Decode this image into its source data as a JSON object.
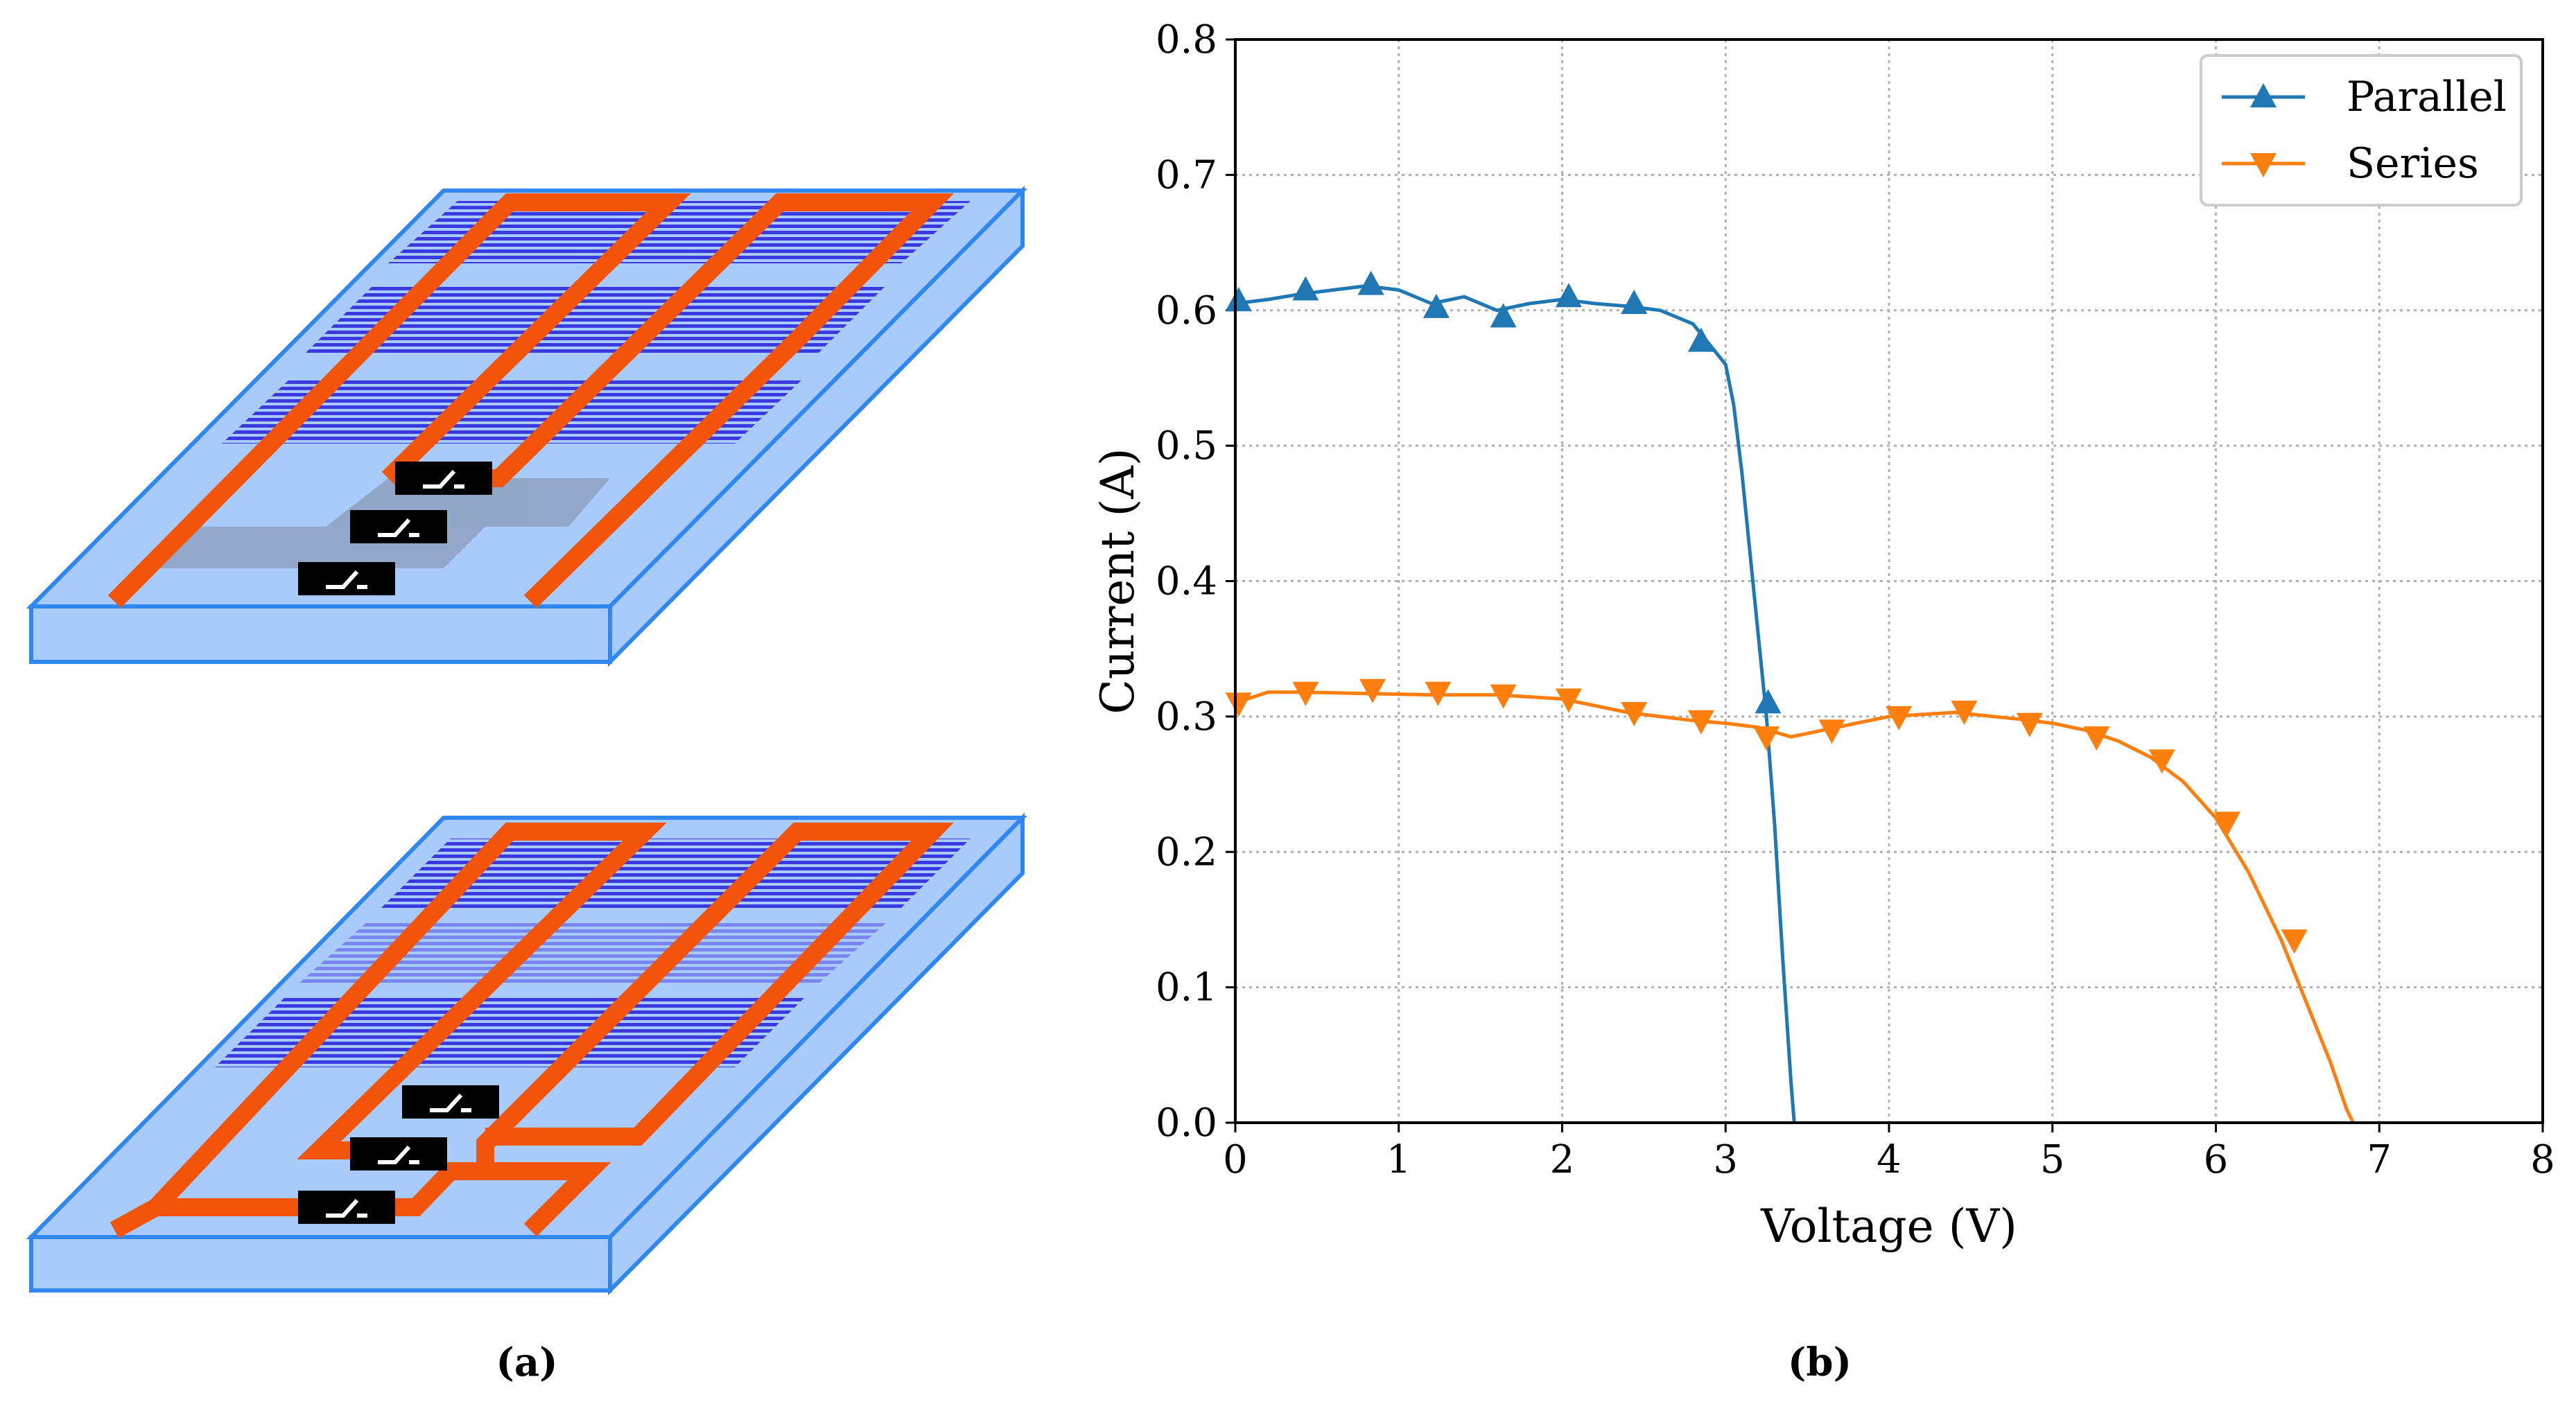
{
  "panel_labels": {
    "a": "(a)",
    "b": "(b)"
  },
  "colors": {
    "parallel": "#1f77b4",
    "series": "#ff7f0e",
    "board_top": "#a9cbfb",
    "board_edge": "#2f87ef",
    "cells": "#3a3ae0",
    "wire": "#f25409",
    "switch": "#000000"
  },
  "chart_data": {
    "type": "line",
    "title": "",
    "xlabel": "Voltage (V)",
    "ylabel": "Current (A)",
    "xlim": [
      0,
      8
    ],
    "ylim": [
      0,
      0.8
    ],
    "xticks": [
      "0",
      "1",
      "2",
      "3",
      "4",
      "5",
      "6",
      "7",
      "8"
    ],
    "yticks": [
      "0.0",
      "0.1",
      "0.2",
      "0.3",
      "0.4",
      "0.5",
      "0.6",
      "0.7",
      "0.8"
    ],
    "grid": true,
    "legend": "top-right",
    "series": [
      {
        "name": "Parallel",
        "marker": "triangle-up",
        "x": [
          0.0,
          0.2,
          0.4,
          0.6,
          0.8,
          1.0,
          1.2,
          1.4,
          1.6,
          1.8,
          2.0,
          2.2,
          2.4,
          2.6,
          2.8,
          2.9,
          3.0,
          3.05,
          3.1,
          3.15,
          3.2,
          3.25,
          3.3,
          3.35,
          3.4,
          3.42
        ],
        "y": [
          0.605,
          0.608,
          0.612,
          0.615,
          0.618,
          0.615,
          0.605,
          0.61,
          0.6,
          0.605,
          0.608,
          0.605,
          0.603,
          0.6,
          0.59,
          0.575,
          0.56,
          0.53,
          0.48,
          0.42,
          0.36,
          0.3,
          0.22,
          0.12,
          0.03,
          0.0
        ],
        "marker_x": [
          0.02,
          0.43,
          0.83,
          1.23,
          1.64,
          2.04,
          2.44,
          2.85,
          3.26
        ],
        "marker_y": [
          0.607,
          0.615,
          0.619,
          0.602,
          0.595,
          0.61,
          0.605,
          0.577,
          0.31
        ]
      },
      {
        "name": "Series",
        "marker": "triangle-down",
        "x": [
          0.0,
          0.2,
          0.4,
          0.8,
          1.2,
          1.6,
          2.0,
          2.4,
          2.8,
          3.0,
          3.2,
          3.4,
          3.6,
          3.8,
          4.0,
          4.4,
          4.8,
          5.0,
          5.2,
          5.4,
          5.6,
          5.8,
          6.0,
          6.2,
          6.4,
          6.6,
          6.7,
          6.8,
          6.84
        ],
        "y": [
          0.31,
          0.318,
          0.318,
          0.317,
          0.316,
          0.316,
          0.313,
          0.303,
          0.297,
          0.295,
          0.292,
          0.285,
          0.29,
          0.295,
          0.3,
          0.303,
          0.298,
          0.295,
          0.29,
          0.282,
          0.27,
          0.252,
          0.225,
          0.185,
          0.135,
          0.075,
          0.045,
          0.01,
          0.0
        ],
        "marker_x": [
          0.02,
          0.43,
          0.84,
          1.24,
          1.64,
          2.04,
          2.44,
          2.85,
          3.25,
          3.65,
          4.06,
          4.46,
          4.86,
          5.27,
          5.67,
          6.07,
          6.48
        ],
        "marker_y": [
          0.31,
          0.318,
          0.32,
          0.318,
          0.316,
          0.313,
          0.303,
          0.297,
          0.285,
          0.29,
          0.3,
          0.304,
          0.295,
          0.285,
          0.268,
          0.222,
          0.135
        ]
      }
    ]
  }
}
